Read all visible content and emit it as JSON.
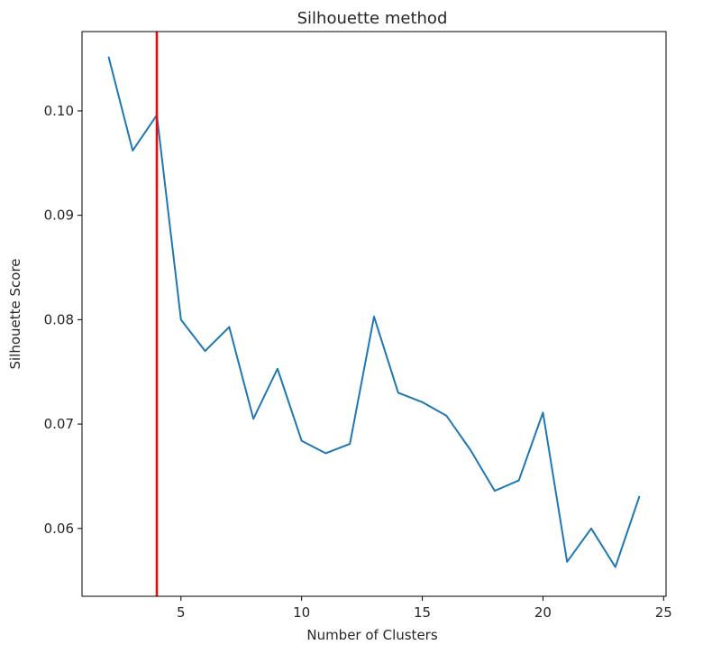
{
  "chart_data": {
    "type": "line",
    "title": "Silhouette method",
    "xlabel": "Number of Clusters",
    "ylabel": "Silhouette Score",
    "xlim": [
      0.9,
      25.1
    ],
    "ylim": [
      0.0535,
      0.1076
    ],
    "xticks": [
      5,
      10,
      15,
      20,
      25
    ],
    "yticks": [
      0.06,
      0.07,
      0.08,
      0.09,
      0.1
    ],
    "xtick_labels": [
      "5",
      "10",
      "15",
      "20",
      "25"
    ],
    "ytick_labels": [
      "0.06",
      "0.07",
      "0.08",
      "0.09",
      "0.10"
    ],
    "grid": false,
    "series": [
      {
        "color": "#1f77b4",
        "x": [
          2,
          3,
          4,
          5,
          6,
          7,
          8,
          9,
          10,
          11,
          12,
          13,
          14,
          15,
          16,
          17,
          18,
          19,
          20,
          21,
          22,
          23,
          24
        ],
        "y": [
          0.1052,
          0.0962,
          0.0996,
          0.08,
          0.077,
          0.0793,
          0.0705,
          0.0753,
          0.0684,
          0.0672,
          0.0681,
          0.0803,
          0.073,
          0.0721,
          0.0708,
          0.0675,
          0.0636,
          0.0646,
          0.0711,
          0.0568,
          0.06,
          0.0563,
          0.0631
        ]
      }
    ],
    "vline": {
      "x": 4,
      "color": "#ff0000"
    }
  }
}
